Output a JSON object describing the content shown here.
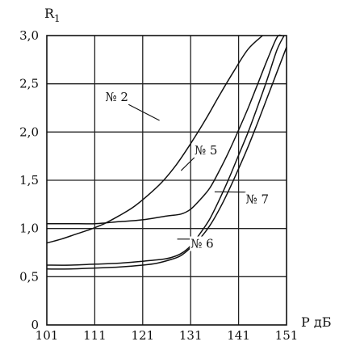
{
  "chart_data": {
    "type": "line",
    "xlabel": "Р дБ",
    "ylabel_main": "R",
    "ylabel_sub": "1",
    "xlim": [
      101,
      151
    ],
    "ylim": [
      0,
      3.0
    ],
    "x_tick_labels": [
      "101",
      "111",
      "121",
      "131",
      "141",
      "151"
    ],
    "y_tick_labels": [
      "0",
      "0,5",
      "1,0",
      "1,5",
      "2,0",
      "2,5",
      "3,0"
    ],
    "grid": true,
    "series": [
      {
        "name": "№ 2",
        "x": [
          101,
          104,
          107,
          110,
          113,
          116,
          119,
          122,
          125,
          128,
          131,
          134,
          137,
          140,
          143,
          146
        ],
        "y": [
          0.85,
          0.89,
          0.94,
          0.99,
          1.05,
          1.13,
          1.22,
          1.34,
          1.48,
          1.66,
          1.88,
          2.12,
          2.38,
          2.63,
          2.86,
          3.0
        ]
      },
      {
        "name": "№ 5",
        "x": [
          101,
          106,
          111,
          116,
          121,
          126,
          129,
          131,
          133,
          135,
          137,
          139,
          141,
          143,
          145,
          147,
          149,
          150
        ],
        "y": [
          1.05,
          1.05,
          1.05,
          1.07,
          1.09,
          1.13,
          1.15,
          1.2,
          1.3,
          1.42,
          1.6,
          1.8,
          2.02,
          2.25,
          2.5,
          2.75,
          2.98,
          3.0
        ]
      },
      {
        "name": "№ 6",
        "x": [
          101,
          106,
          111,
          116,
          121,
          125,
          127,
          129,
          131,
          133,
          135,
          137,
          139,
          141,
          143,
          145,
          147,
          149,
          150.5
        ],
        "y": [
          0.62,
          0.62,
          0.63,
          0.64,
          0.66,
          0.68,
          0.7,
          0.74,
          0.82,
          0.95,
          1.1,
          1.3,
          1.52,
          1.76,
          2.0,
          2.27,
          2.55,
          2.85,
          3.0
        ]
      },
      {
        "name": "№ 7",
        "x": [
          101,
          106,
          111,
          116,
          121,
          124,
          127,
          129,
          131,
          133,
          135,
          137,
          139,
          141,
          143,
          145,
          147,
          149,
          151
        ],
        "y": [
          0.58,
          0.58,
          0.59,
          0.6,
          0.62,
          0.64,
          0.68,
          0.72,
          0.8,
          0.9,
          1.03,
          1.2,
          1.4,
          1.62,
          1.85,
          2.1,
          2.36,
          2.62,
          2.88
        ]
      }
    ],
    "annotations": [
      {
        "text": "№ 2",
        "series": "№ 2",
        "label_at": [
          113.2,
          2.32
        ],
        "points_to": [
          124.5,
          2.12
        ]
      },
      {
        "text": "№ 5",
        "series": "№ 5",
        "label_at": [
          131.8,
          1.77
        ],
        "points_to": [
          129,
          1.6
        ]
      },
      {
        "text": "№ 7",
        "series": "№ 7",
        "label_at": [
          142.5,
          1.26
        ],
        "points_to": [
          136,
          1.38
        ]
      },
      {
        "text": "№ 6",
        "series": "№ 6",
        "label_at": [
          131,
          0.8
        ],
        "points_to": [
          128.2,
          0.89
        ]
      }
    ]
  }
}
